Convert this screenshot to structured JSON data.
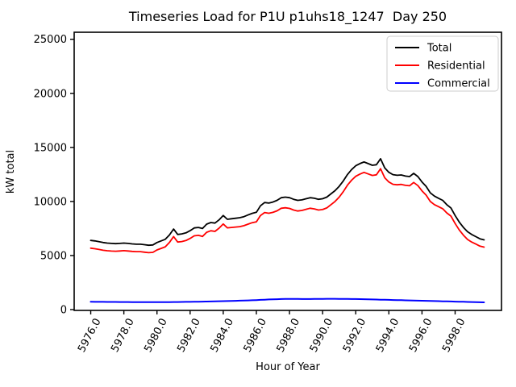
{
  "chart_data": {
    "type": "line",
    "title": "Timeseries Load for P1U p1uhs18_1247  Day 250",
    "xlabel": "Hour of Year",
    "ylabel": "kW total",
    "grid": false,
    "background_color": "#ffffff",
    "x_start": 5976.0,
    "x_step": 0.25,
    "n_points": 96,
    "xlim": [
      5975.0,
      6000.8
    ],
    "ylim": [
      -75,
      25650
    ],
    "xticks": {
      "values": [
        5976,
        5978,
        5980,
        5982,
        5984,
        5986,
        5988,
        5990,
        5992,
        5994,
        5996,
        5998
      ],
      "labels": [
        "5976.0",
        "5978.0",
        "5980.0",
        "5982.0",
        "5984.0",
        "5986.0",
        "5988.0",
        "5990.0",
        "5992.0",
        "5994.0",
        "5996.0",
        "5998.0"
      ],
      "rotation_deg": 62
    },
    "yticks": {
      "values": [
        0,
        5000,
        10000,
        15000,
        20000,
        25000
      ],
      "labels": [
        "0",
        "5000",
        "10000",
        "15000",
        "20000",
        "25000"
      ]
    },
    "legend": {
      "position": "upper right",
      "entries": [
        "Total",
        "Residential",
        "Commercial"
      ]
    },
    "series": [
      {
        "name": "Total",
        "color": "#000000",
        "values": [
          6400,
          6350,
          6280,
          6200,
          6150,
          6120,
          6100,
          6120,
          6150,
          6120,
          6080,
          6050,
          6050,
          6000,
          5950,
          5980,
          6200,
          6350,
          6500,
          6900,
          7450,
          6950,
          7000,
          7100,
          7300,
          7550,
          7600,
          7500,
          7900,
          8050,
          8000,
          8300,
          8700,
          8350,
          8400,
          8450,
          8500,
          8600,
          8750,
          8900,
          9000,
          9600,
          9900,
          9850,
          9950,
          10100,
          10350,
          10400,
          10350,
          10200,
          10100,
          10150,
          10250,
          10350,
          10300,
          10200,
          10250,
          10400,
          10700,
          11000,
          11400,
          11900,
          12500,
          12950,
          13300,
          13500,
          13650,
          13500,
          13350,
          13400,
          13950,
          13100,
          12700,
          12480,
          12420,
          12450,
          12350,
          12300,
          12600,
          12300,
          11800,
          11400,
          10800,
          10500,
          10300,
          10100,
          9700,
          9400,
          8700,
          8100,
          7600,
          7200,
          6950,
          6750,
          6550,
          6450
        ]
      },
      {
        "name": "Residential",
        "color": "#ff0000",
        "values": [
          5680,
          5632,
          5565,
          5488,
          5440,
          5412,
          5395,
          5418,
          5450,
          5422,
          5385,
          5358,
          5360,
          5312,
          5264,
          5295,
          5514,
          5662,
          5810,
          6206,
          6752,
          6248,
          6294,
          6388,
          6582,
          6825,
          6868,
          6760,
          7152,
          7294,
          7236,
          7528,
          7920,
          7560,
          7600,
          7638,
          7676,
          7764,
          7900,
          8035,
          8120,
          8700,
          8980,
          8910,
          8995,
          9135,
          9375,
          9415,
          9360,
          9212,
          9116,
          9170,
          9272,
          9370,
          9315,
          9210,
          9255,
          9400,
          9700,
          10002,
          10405,
          10910,
          11515,
          11970,
          12325,
          12532,
          12690,
          12550,
          12410,
          12470,
          13030,
          12190,
          11800,
          11590,
          11540,
          11580,
          11490,
          11450,
          11760,
          11470,
          10980,
          10590,
          10000,
          9710,
          9520,
          9330,
          8940,
          8650,
          7960,
          7370,
          6880,
          6490,
          6250,
          6060,
          5870,
          5780
        ]
      },
      {
        "name": "Commercial",
        "color": "#0000ff",
        "values": [
          720,
          718,
          715,
          712,
          710,
          708,
          705,
          702,
          700,
          698,
          695,
          692,
          690,
          688,
          686,
          685,
          686,
          688,
          690,
          694,
          698,
          702,
          706,
          712,
          718,
          725,
          732,
          740,
          748,
          756,
          764,
          772,
          780,
          790,
          800,
          812,
          824,
          836,
          850,
          865,
          880,
          900,
          920,
          940,
          955,
          965,
          975,
          985,
          990,
          988,
          984,
          980,
          978,
          980,
          985,
          990,
          995,
          1000,
          1000,
          998,
          995,
          990,
          985,
          980,
          975,
          968,
          960,
          950,
          940,
          930,
          920,
          910,
          900,
          890,
          880,
          870,
          860,
          850,
          840,
          830,
          820,
          810,
          800,
          790,
          780,
          770,
          760,
          750,
          740,
          730,
          720,
          710,
          700,
          690,
          680,
          670
        ]
      }
    ]
  }
}
